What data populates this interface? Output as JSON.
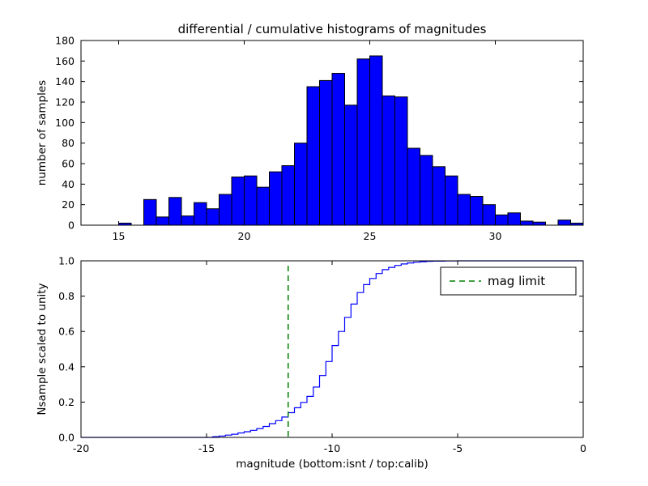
{
  "figure": {
    "title": "differential / cumulative histograms of magnitudes",
    "background": "#ffffff"
  },
  "chart_data": [
    {
      "type": "bar",
      "name": "differential-histogram",
      "ylabel": "number of samples",
      "xlim": [
        13.5,
        33.5
      ],
      "ylim": [
        0,
        180
      ],
      "xticks": [
        15,
        20,
        25,
        30
      ],
      "xtick_labels": [
        "15",
        "20",
        "25",
        "30"
      ],
      "yticks": [
        0,
        20,
        40,
        60,
        80,
        100,
        120,
        140,
        160,
        180
      ],
      "ytick_labels": [
        "0",
        "20",
        "40",
        "60",
        "80",
        "100",
        "120",
        "140",
        "160",
        "180"
      ],
      "bar_color": "#0000ff",
      "edge_color": "#000000",
      "bin_start": 15.0,
      "bin_width": 0.5,
      "values": [
        2,
        0,
        25,
        8,
        27,
        9,
        22,
        16,
        30,
        47,
        48,
        37,
        52,
        58,
        80,
        135,
        141,
        148,
        117,
        162,
        165,
        126,
        125,
        75,
        68,
        57,
        48,
        30,
        28,
        20,
        10,
        12,
        4,
        3,
        0,
        5,
        2
      ],
      "grid": false
    },
    {
      "type": "line",
      "name": "cumulative-histogram",
      "style": "steps",
      "ylabel": "Nsample scaled to unity",
      "xlabel": "magnitude (bottom:isnt / top:calib)",
      "xlim": [
        -20,
        0
      ],
      "ylim": [
        0,
        1.0
      ],
      "xticks": [
        -20,
        -15,
        -10,
        -5,
        0
      ],
      "xtick_labels": [
        "-20",
        "-15",
        "-10",
        "-5",
        "0"
      ],
      "yticks": [
        0.0,
        0.2,
        0.4,
        0.6,
        0.8,
        1.0
      ],
      "ytick_labels": [
        "0.0",
        "0.2",
        "0.4",
        "0.6",
        "0.8",
        "1.0"
      ],
      "line_color": "#0000ff",
      "mag_limit": -11.75,
      "mag_limit_color": "#008000",
      "legend": {
        "label": "mag limit",
        "position": "upper right",
        "line_style": "dashed"
      },
      "steps": [
        [
          -20,
          0
        ],
        [
          -14.9,
          0
        ],
        [
          -14.75,
          0.004
        ],
        [
          -14.5,
          0.008
        ],
        [
          -14.25,
          0.013
        ],
        [
          -14.0,
          0.018
        ],
        [
          -13.75,
          0.025
        ],
        [
          -13.5,
          0.032
        ],
        [
          -13.25,
          0.04
        ],
        [
          -13.0,
          0.05
        ],
        [
          -12.75,
          0.062
        ],
        [
          -12.5,
          0.078
        ],
        [
          -12.25,
          0.095
        ],
        [
          -12.0,
          0.115
        ],
        [
          -11.75,
          0.14
        ],
        [
          -11.5,
          0.168
        ],
        [
          -11.25,
          0.198
        ],
        [
          -11.0,
          0.232
        ],
        [
          -10.75,
          0.285
        ],
        [
          -10.5,
          0.35
        ],
        [
          -10.25,
          0.43
        ],
        [
          -10.0,
          0.52
        ],
        [
          -9.75,
          0.6
        ],
        [
          -9.5,
          0.68
        ],
        [
          -9.25,
          0.755
        ],
        [
          -9.0,
          0.82
        ],
        [
          -8.75,
          0.865
        ],
        [
          -8.5,
          0.9
        ],
        [
          -8.25,
          0.928
        ],
        [
          -8.0,
          0.95
        ],
        [
          -7.75,
          0.963
        ],
        [
          -7.5,
          0.974
        ],
        [
          -7.25,
          0.982
        ],
        [
          -7.0,
          0.988
        ],
        [
          -6.75,
          0.992
        ],
        [
          -6.5,
          0.995
        ],
        [
          -6.25,
          0.997
        ],
        [
          -6.0,
          0.998
        ],
        [
          -5.5,
          0.999
        ],
        [
          -5.0,
          1.0
        ],
        [
          0,
          1.0
        ]
      ],
      "grid": false
    }
  ]
}
